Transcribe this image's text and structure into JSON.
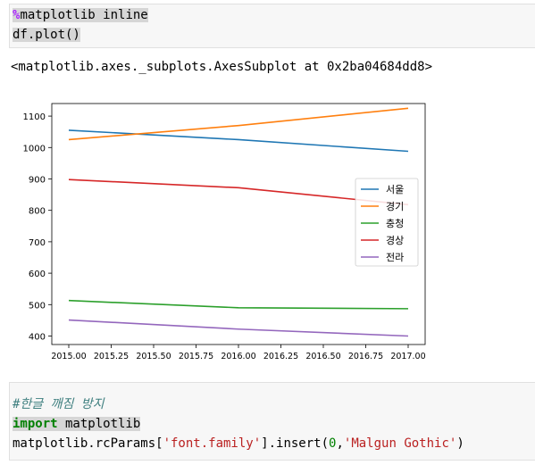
{
  "cell1": {
    "line1_magic": "%",
    "line1_rest": "matplotlib inline",
    "line2": "df.plot()"
  },
  "output": {
    "repr": "<matplotlib.axes._subplots.AxesSubplot at 0x2ba04684dd8>"
  },
  "cell2": {
    "comment": "#한글 깨짐 방지",
    "import_kw": "import",
    "import_rest": " matplotlib",
    "line3_a": "matplotlib.rcParams[",
    "line3_str1": "'font.family'",
    "line3_b": "].insert(",
    "line3_num": "0",
    "line3_c": ",",
    "line3_str2": "'Malgun Gothic'",
    "line3_d": ")"
  },
  "chart_data": {
    "type": "line",
    "x": [
      2015,
      2016,
      2017
    ],
    "xticks": [
      "2015.00",
      "2015.25",
      "2015.50",
      "2015.75",
      "2016.00",
      "2016.25",
      "2016.50",
      "2016.75",
      "2017.00"
    ],
    "yticks": [
      "400",
      "500",
      "600",
      "700",
      "800",
      "900",
      "1000",
      "1100"
    ],
    "xlim": [
      2014.9,
      2017.1
    ],
    "ylim": [
      373,
      1140
    ],
    "legend_position": "center-right",
    "grid": false,
    "series": [
      {
        "name": "서울",
        "color": "#1f77b4",
        "values": [
          1055,
          1025,
          988
        ]
      },
      {
        "name": "경기",
        "color": "#ff7f0e",
        "values": [
          1025,
          1070,
          1125
        ]
      },
      {
        "name": "충청",
        "color": "#2ca02c",
        "values": [
          513,
          490,
          487
        ]
      },
      {
        "name": "경상",
        "color": "#d62728",
        "values": [
          898,
          872,
          818
        ]
      },
      {
        "name": "전라",
        "color": "#9467bd",
        "values": [
          451,
          422,
          400
        ]
      }
    ]
  }
}
